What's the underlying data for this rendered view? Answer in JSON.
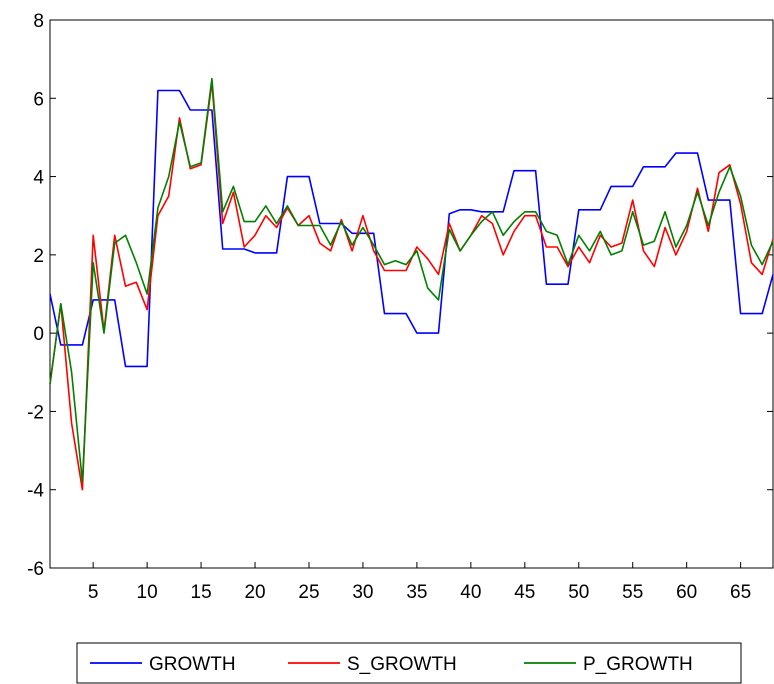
{
  "chart_data": {
    "type": "line",
    "title": "",
    "xlabel": "",
    "ylabel": "",
    "xlim": [
      1,
      68
    ],
    "ylim": [
      -6,
      8
    ],
    "x_ticks": [
      5,
      10,
      15,
      20,
      25,
      30,
      35,
      40,
      45,
      50,
      55,
      60,
      65
    ],
    "y_ticks": [
      -6,
      -4,
      -2,
      0,
      2,
      4,
      6,
      8
    ],
    "grid": false,
    "legend_position": "bottom",
    "series": [
      {
        "name": "GROWTH",
        "color": "#0000ff",
        "x": [
          1,
          2,
          3,
          4,
          5,
          6,
          7,
          8,
          9,
          10,
          11,
          12,
          13,
          14,
          15,
          16,
          17,
          18,
          19,
          20,
          21,
          22,
          23,
          24,
          25,
          26,
          27,
          28,
          29,
          30,
          31,
          32,
          33,
          34,
          35,
          36,
          37,
          38,
          39,
          40,
          41,
          42,
          43,
          44,
          45,
          46,
          47,
          48,
          49,
          50,
          51,
          52,
          53,
          54,
          55,
          56,
          57,
          58,
          59,
          60,
          61,
          62,
          63,
          64,
          65,
          66,
          67,
          68
        ],
        "values": [
          1.0,
          -0.3,
          -0.3,
          -0.3,
          0.85,
          0.85,
          0.85,
          -0.85,
          -0.85,
          -0.85,
          6.2,
          6.2,
          6.2,
          5.7,
          5.7,
          5.7,
          2.15,
          2.15,
          2.15,
          2.05,
          2.05,
          2.05,
          4.0,
          4.0,
          4.0,
          2.8,
          2.8,
          2.8,
          2.55,
          2.55,
          2.55,
          0.5,
          0.5,
          0.5,
          0.0,
          0.0,
          0.0,
          3.05,
          3.15,
          3.15,
          3.1,
          3.1,
          3.1,
          4.15,
          4.15,
          4.15,
          1.25,
          1.25,
          1.25,
          3.15,
          3.15,
          3.15,
          3.75,
          3.75,
          3.75,
          4.25,
          4.25,
          4.25,
          4.6,
          4.6,
          4.6,
          3.4,
          3.4,
          3.4,
          0.5,
          0.5,
          0.5,
          1.5
        ]
      },
      {
        "name": "S_GROWTH",
        "color": "#ff0000",
        "x": [
          1,
          2,
          3,
          4,
          5,
          6,
          7,
          8,
          9,
          10,
          11,
          12,
          13,
          14,
          15,
          16,
          17,
          18,
          19,
          20,
          21,
          22,
          23,
          24,
          25,
          26,
          27,
          28,
          29,
          30,
          31,
          32,
          33,
          34,
          35,
          36,
          37,
          38,
          39,
          40,
          41,
          42,
          43,
          44,
          45,
          46,
          47,
          48,
          49,
          50,
          51,
          52,
          53,
          54,
          55,
          56,
          57,
          58,
          59,
          60,
          61,
          62,
          63,
          64,
          65,
          66,
          67,
          68
        ],
        "values": [
          -1.3,
          0.75,
          -2.3,
          -4.0,
          2.5,
          0.05,
          2.5,
          1.2,
          1.3,
          0.6,
          3.0,
          3.5,
          5.5,
          4.2,
          4.3,
          6.4,
          2.8,
          3.6,
          2.2,
          2.5,
          3.0,
          2.7,
          3.2,
          2.75,
          3.0,
          2.3,
          2.1,
          2.9,
          2.1,
          3.0,
          2.1,
          1.6,
          1.6,
          1.6,
          2.2,
          1.9,
          1.5,
          2.8,
          2.1,
          2.5,
          3.0,
          2.8,
          2.0,
          2.6,
          3.0,
          3.0,
          2.2,
          2.2,
          1.7,
          2.2,
          1.8,
          2.5,
          2.2,
          2.3,
          3.4,
          2.1,
          1.7,
          2.7,
          2.0,
          2.6,
          3.7,
          2.6,
          4.1,
          4.3,
          3.3,
          1.8,
          1.5,
          2.4
        ]
      },
      {
        "name": "P_GROWTH",
        "color": "#008000",
        "x": [
          1,
          2,
          3,
          4,
          5,
          6,
          7,
          8,
          9,
          10,
          11,
          12,
          13,
          14,
          15,
          16,
          17,
          18,
          19,
          20,
          21,
          22,
          23,
          24,
          25,
          26,
          27,
          28,
          29,
          30,
          31,
          32,
          33,
          34,
          35,
          36,
          37,
          38,
          39,
          40,
          41,
          42,
          43,
          44,
          45,
          46,
          47,
          48,
          49,
          50,
          51,
          52,
          53,
          54,
          55,
          56,
          57,
          58,
          59,
          60,
          61,
          62,
          63,
          64,
          65,
          66,
          67,
          68
        ],
        "values": [
          -1.3,
          0.75,
          -1.0,
          -3.8,
          1.8,
          0.0,
          2.3,
          2.5,
          1.8,
          1.0,
          3.2,
          4.0,
          5.4,
          4.25,
          4.35,
          6.5,
          3.1,
          3.75,
          2.85,
          2.85,
          3.25,
          2.8,
          3.25,
          2.75,
          2.75,
          2.75,
          2.25,
          2.85,
          2.25,
          2.7,
          2.25,
          1.75,
          1.85,
          1.75,
          2.1,
          1.15,
          0.85,
          2.65,
          2.1,
          2.5,
          2.85,
          3.1,
          2.5,
          2.85,
          3.1,
          3.1,
          2.6,
          2.5,
          1.75,
          2.5,
          2.1,
          2.6,
          2.0,
          2.1,
          3.1,
          2.25,
          2.35,
          3.1,
          2.2,
          2.75,
          3.6,
          2.75,
          3.6,
          4.25,
          3.5,
          2.25,
          1.75,
          2.35
        ]
      }
    ]
  }
}
